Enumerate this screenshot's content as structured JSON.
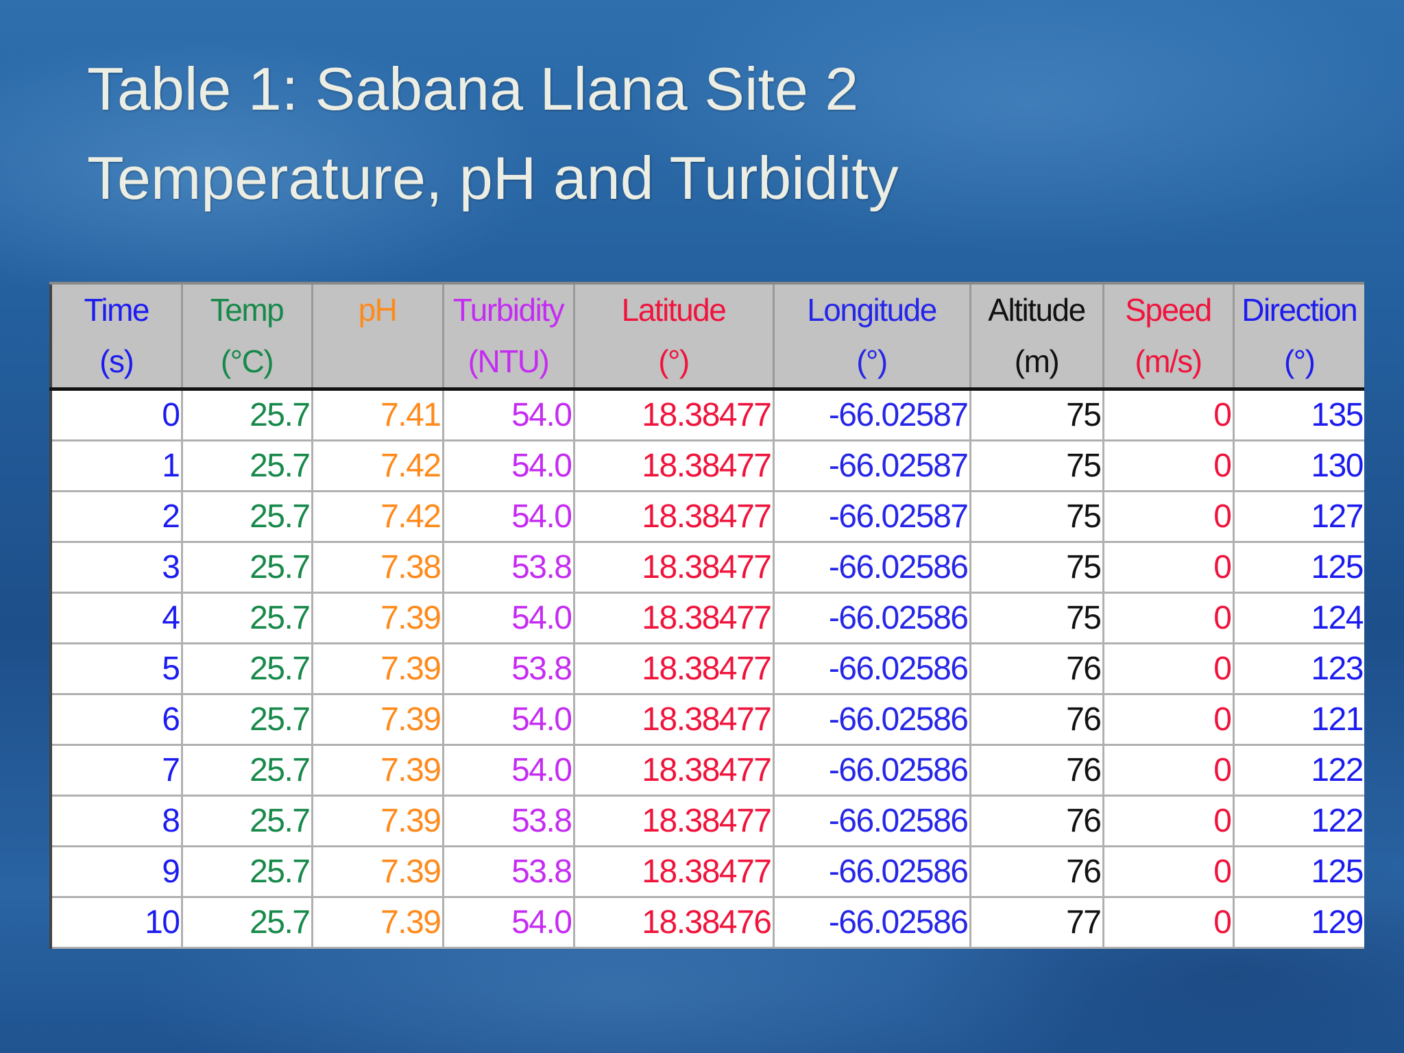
{
  "slide": {
    "title_lines": [
      "Table 1: Sabana Llana Site 2",
      "Temperature, pH and Turbidity"
    ]
  },
  "table": {
    "columns": [
      {
        "name": "Time",
        "unit": "(s)",
        "color": "#1c1cf0"
      },
      {
        "name": "Temp",
        "unit": "(°C)",
        "color": "#17894a"
      },
      {
        "name": "pH",
        "color": "#ff8a1c"
      },
      {
        "name": "Turbidity",
        "unit": "(NTU)",
        "color": "#c52cf2"
      },
      {
        "name": "Latitude",
        "unit": "(°)",
        "color": "#f0143c"
      },
      {
        "name": "Longitude",
        "unit": "(°)",
        "color": "#2626e8"
      },
      {
        "name": "Altitude",
        "unit": "(m)",
        "color": "#111111"
      },
      {
        "name": "Speed",
        "unit": "(m/s)",
        "color": "#f0143c"
      },
      {
        "name": "Direction",
        "unit": "(°)",
        "color": "#1c1cf0"
      }
    ],
    "rows": [
      [
        "0",
        "25.7",
        "7.41",
        "54.0",
        "18.38477",
        "-66.02587",
        "75",
        "0",
        "135"
      ],
      [
        "1",
        "25.7",
        "7.42",
        "54.0",
        "18.38477",
        "-66.02587",
        "75",
        "0",
        "130"
      ],
      [
        "2",
        "25.7",
        "7.42",
        "54.0",
        "18.38477",
        "-66.02587",
        "75",
        "0",
        "127"
      ],
      [
        "3",
        "25.7",
        "7.38",
        "53.8",
        "18.38477",
        "-66.02586",
        "75",
        "0",
        "125"
      ],
      [
        "4",
        "25.7",
        "7.39",
        "54.0",
        "18.38477",
        "-66.02586",
        "75",
        "0",
        "124"
      ],
      [
        "5",
        "25.7",
        "7.39",
        "53.8",
        "18.38477",
        "-66.02586",
        "76",
        "0",
        "123"
      ],
      [
        "6",
        "25.7",
        "7.39",
        "54.0",
        "18.38477",
        "-66.02586",
        "76",
        "0",
        "121"
      ],
      [
        "7",
        "25.7",
        "7.39",
        "54.0",
        "18.38477",
        "-66.02586",
        "76",
        "0",
        "122"
      ],
      [
        "8",
        "25.7",
        "7.39",
        "53.8",
        "18.38477",
        "-66.02586",
        "76",
        "0",
        "122"
      ],
      [
        "9",
        "25.7",
        "7.39",
        "53.8",
        "18.38477",
        "-66.02586",
        "76",
        "0",
        "125"
      ],
      [
        "10",
        "25.7",
        "7.39",
        "54.0",
        "18.38476",
        "-66.02586",
        "77",
        "0",
        "129"
      ]
    ]
  }
}
